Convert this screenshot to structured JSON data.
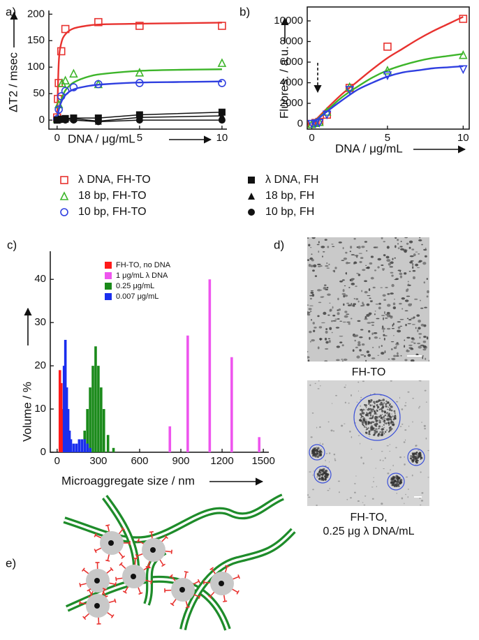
{
  "chart_data": [
    {
      "type": "scatter",
      "label": "a)",
      "xlabel": "DNA / μg/mL",
      "ylabel": "ΔT2 / msec",
      "xlim": [
        -0.5,
        10.3
      ],
      "ylim": [
        -17,
        207
      ],
      "xticks": [
        0,
        5,
        10
      ],
      "yticks": [
        0,
        50,
        100,
        150,
        200
      ],
      "legend": "below",
      "fit_x": [
        0,
        0.1,
        0.25,
        0.5,
        1,
        2,
        3,
        5,
        7.5,
        10
      ],
      "series": [
        {
          "name": "λ DNA, FH-TO",
          "color": "#e8322f",
          "marker": "square-open",
          "x": [
            0,
            0.05,
            0.1,
            0.25,
            0.5,
            2.5,
            5,
            10
          ],
          "values": [
            5,
            40,
            70,
            130,
            172,
            185,
            178,
            178
          ],
          "fit": [
            0,
            109,
            145,
            162,
            173,
            179,
            181,
            182,
            183,
            184
          ]
        },
        {
          "name": "18 bp, FH-TO",
          "color": "#3db52a",
          "marker": "triangle-open",
          "x": [
            0,
            0.1,
            0.3,
            0.5,
            1,
            2.5,
            5,
            10
          ],
          "values": [
            3,
            30,
            70,
            75,
            88,
            68,
            90,
            108
          ],
          "fit": [
            0,
            20,
            38,
            56,
            71,
            83,
            88,
            93,
            95,
            96
          ]
        },
        {
          "name": "10 bp, FH-TO",
          "color": "#2f3fe0",
          "marker": "circle-open",
          "x": [
            0,
            0.1,
            0.25,
            0.5,
            1,
            2.5,
            5,
            10
          ],
          "values": [
            2,
            20,
            45,
            55,
            62,
            68,
            70,
            70
          ],
          "fit": [
            0,
            19,
            34,
            47,
            58,
            65,
            68,
            71,
            72,
            73
          ]
        },
        {
          "name": "λ DNA, FH",
          "color": "#111111",
          "marker": "square",
          "line": true,
          "x": [
            0,
            0.25,
            0.5,
            1,
            2.5,
            5,
            10
          ],
          "values": [
            0,
            2,
            3,
            4,
            4,
            10,
            15
          ]
        },
        {
          "name": "18 bp, FH",
          "color": "#111111",
          "marker": "triangle",
          "line": true,
          "x": [
            0,
            0.25,
            0.5,
            1,
            2.5,
            5,
            10
          ],
          "values": [
            0,
            2,
            2,
            3,
            -2,
            5,
            8
          ]
        },
        {
          "name": "10 bp, FH",
          "color": "#111111",
          "marker": "circle",
          "line": true,
          "x": [
            0,
            0.25,
            0.5,
            1,
            2.5,
            5,
            10
          ],
          "values": [
            0,
            1,
            0,
            0,
            -3,
            0,
            0
          ]
        }
      ]
    },
    {
      "type": "scatter",
      "label": "b)",
      "xlabel": "DNA /  μg/mL",
      "ylabel": "Fluores. / a.u.",
      "frame": true,
      "xlim": [
        -0.3,
        10.4
      ],
      "ylim": [
        -500,
        11350
      ],
      "xticks": [
        0,
        5,
        10
      ],
      "yticks": [
        0,
        2000,
        4000,
        6000,
        8000,
        10000
      ],
      "fit_x": [
        0,
        1,
        2,
        3,
        4,
        5,
        6,
        7,
        8,
        9,
        10
      ],
      "series": [
        {
          "color": "#e8322f",
          "marker": "square-open",
          "x": [
            0,
            0.25,
            0.5,
            1,
            2.5,
            5,
            10
          ],
          "values": [
            0,
            100,
            200,
            900,
            3500,
            7500,
            10200
          ],
          "fit": [
            0,
            1500,
            2900,
            4100,
            5300,
            6400,
            7300,
            8200,
            9000,
            9700,
            10400
          ]
        },
        {
          "color": "#3db52a",
          "marker": "triangle-open",
          "x": [
            0,
            0.25,
            0.5,
            1,
            2.5,
            5,
            10
          ],
          "values": [
            0,
            100,
            200,
            1200,
            3600,
            5200,
            6700
          ],
          "fit": [
            0,
            1300,
            2600,
            3600,
            4500,
            5200,
            5700,
            6100,
            6400,
            6600,
            6800
          ]
        },
        {
          "color": "#2f3fe0",
          "marker": "triangle-down-open",
          "x": [
            0,
            0.25,
            0.5,
            1,
            2.5,
            5,
            10
          ],
          "values": [
            0,
            50,
            100,
            900,
            3300,
            4700,
            5300
          ],
          "fit": [
            0,
            1200,
            2300,
            3300,
            4000,
            4600,
            5000,
            5200,
            5400,
            5500,
            5600
          ]
        }
      ]
    },
    {
      "type": "bar",
      "label": "c)",
      "xlabel": "Microaggregate size / nm",
      "ylabel": "Volume / %",
      "legend": "upper-left",
      "xlim": [
        -50,
        1540
      ],
      "ylim": [
        0,
        46.5
      ],
      "xticks": [
        0,
        300,
        600,
        900,
        1200,
        1500
      ],
      "yticks": [
        0,
        10,
        20,
        30,
        40
      ],
      "series": [
        {
          "name": "FH-TO, no DNA",
          "color": "#ff1a1a",
          "x": [
            20,
            30,
            40,
            50,
            60
          ],
          "values": [
            19,
            16,
            10,
            5,
            2
          ]
        },
        {
          "name": "1 μg/mL λ DNA",
          "color": "#ee55ee",
          "x": [
            820,
            950,
            1110,
            1270,
            1470
          ],
          "values": [
            6,
            27,
            40,
            22,
            3.5
          ]
        },
        {
          "name": "0.25 μg/mL",
          "color": "#1a8a1a",
          "x": [
            200,
            220,
            240,
            260,
            280,
            300,
            320,
            340,
            370,
            410
          ],
          "values": [
            5,
            10,
            15,
            20,
            24.5,
            20,
            15,
            10,
            4,
            1
          ]
        },
        {
          "name": "0.007 μg/mL",
          "color": "#1a2eee",
          "x": [
            50,
            60,
            70,
            80,
            90,
            100,
            120,
            140,
            160,
            180,
            200,
            220,
            240
          ],
          "values": [
            20,
            26,
            15,
            10,
            5,
            3,
            2,
            2,
            3,
            3,
            3,
            2,
            1
          ]
        }
      ]
    }
  ],
  "micrographs": {
    "label": "d)",
    "captions": [
      "FH-TO",
      "FH-TO,",
      "0.25 μg λ DNA/mL"
    ]
  },
  "diagram": {
    "label": "e)"
  }
}
